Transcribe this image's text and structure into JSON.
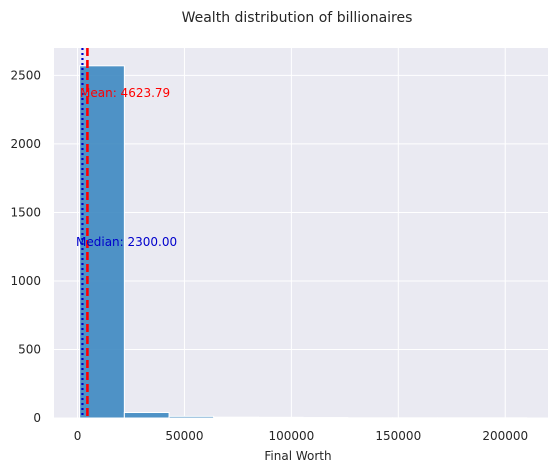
{
  "chart_data": {
    "type": "bar",
    "title": "Wealth distribution of billionaires",
    "xlabel": "Final Worth",
    "ylabel": "",
    "xlim": [
      -11000,
      220000
    ],
    "ylim": [
      0,
      2700
    ],
    "grid": true,
    "xticks": [
      0,
      50000,
      100000,
      150000,
      200000
    ],
    "xtick_labels": [
      "0",
      "50000",
      "100000",
      "150000",
      "200000"
    ],
    "yticks": [
      0,
      500,
      1000,
      1500,
      2000,
      2500
    ],
    "ytick_labels": [
      "0",
      "500",
      "1000",
      "1500",
      "2000",
      "2500"
    ],
    "bins": [
      {
        "x0": 1000,
        "x1": 21900,
        "count": 2570
      },
      {
        "x0": 21900,
        "x1": 42800,
        "count": 40
      },
      {
        "x0": 42800,
        "x1": 63700,
        "count": 12
      },
      {
        "x0": 63700,
        "x1": 84600,
        "count": 6
      },
      {
        "x0": 84600,
        "x1": 105500,
        "count": 5
      },
      {
        "x0": 105500,
        "x1": 126400,
        "count": 3
      },
      {
        "x0": 126400,
        "x1": 147300,
        "count": 1
      },
      {
        "x0": 147300,
        "x1": 168200,
        "count": 1
      },
      {
        "x0": 168200,
        "x1": 189100,
        "count": 1
      },
      {
        "x0": 189100,
        "x1": 210000,
        "count": 1
      }
    ],
    "bar_color": "#3d88c1",
    "mean": {
      "value": 4623.79,
      "label": "Mean: 4623.79",
      "color": "#ff0000"
    },
    "median": {
      "value": 2300.0,
      "label": "Median: 2300.00",
      "color": "#0000cc"
    }
  }
}
